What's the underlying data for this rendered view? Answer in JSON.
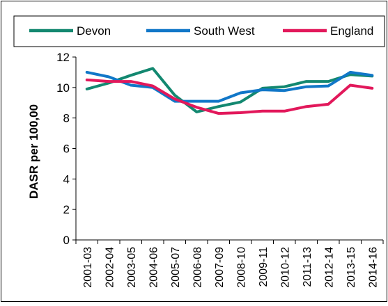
{
  "chart_data": {
    "type": "line",
    "title": "",
    "xlabel": "",
    "ylabel": "DASR per 100,00",
    "ylim": [
      0,
      12
    ],
    "yticks": [
      0,
      2,
      4,
      6,
      8,
      10,
      12
    ],
    "grid": false,
    "legend": "top",
    "categories": [
      "2001-03",
      "2002-04",
      "2003-05",
      "2004-06",
      "2005-07",
      "2006-08",
      "2007-09",
      "2008-10",
      "2009-11",
      "2010-12",
      "2011-13",
      "2012-14",
      "2013-15",
      "2014-16"
    ],
    "series": [
      {
        "name": "Devon",
        "color": "#138870",
        "values": [
          9.9,
          10.3,
          10.8,
          11.25,
          9.5,
          8.4,
          8.75,
          9.05,
          9.95,
          10.05,
          10.4,
          10.4,
          10.85,
          10.75
        ]
      },
      {
        "name": "South West",
        "color": "#1177c8",
        "values": [
          11.0,
          10.7,
          10.15,
          10.0,
          9.1,
          9.1,
          9.1,
          9.65,
          9.85,
          9.8,
          10.05,
          10.1,
          11.0,
          10.8
        ]
      },
      {
        "name": "England",
        "color": "#e2185b",
        "values": [
          10.5,
          10.4,
          10.4,
          10.1,
          9.25,
          8.7,
          8.3,
          8.35,
          8.45,
          8.45,
          8.75,
          8.9,
          10.15,
          9.95
        ]
      }
    ]
  }
}
